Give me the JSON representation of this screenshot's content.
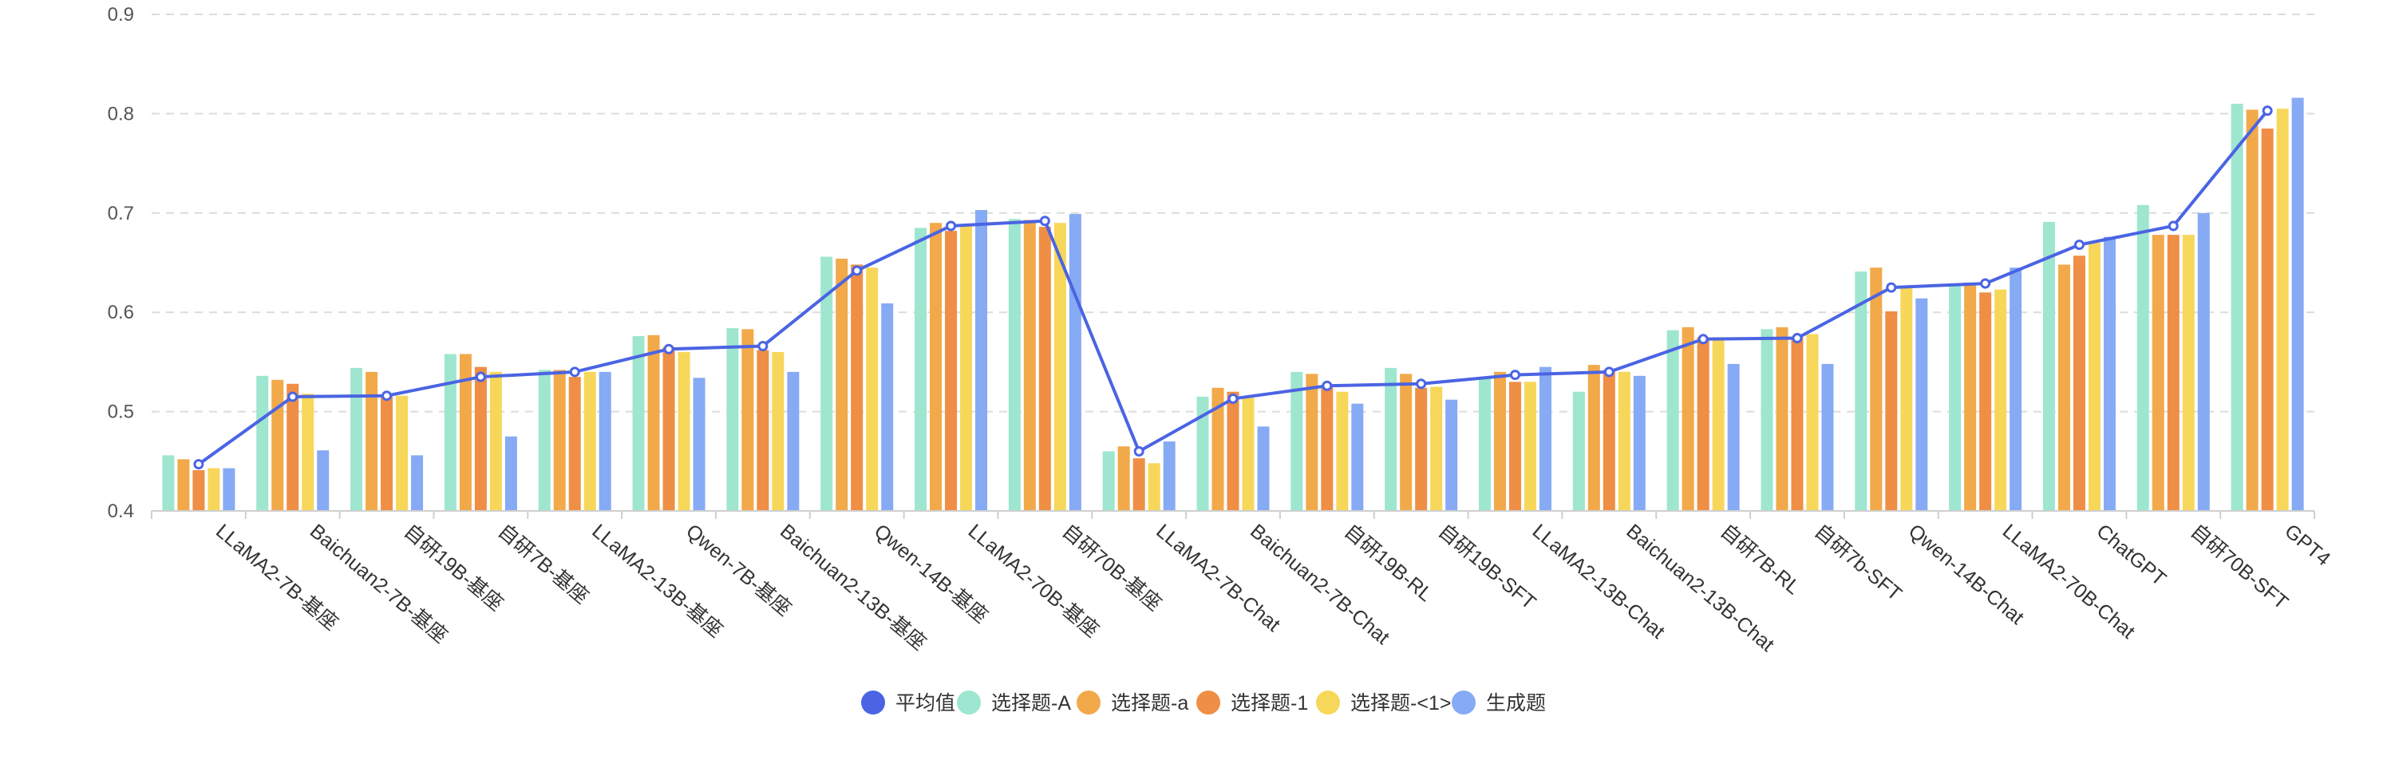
{
  "chart_data": {
    "type": "bar",
    "categories": [
      "LLaMA2-7B-基座",
      "Baichuan2-7B-基座",
      "自研19B-基座",
      "自研7B-基座",
      "LLaMA2-13B-基座",
      "Qwen-7B-基座",
      "Baichuan2-13B-基座",
      "Qwen-14B-基座",
      "LLaMA2-70B-基座",
      "自研70B-基座",
      "LLaMA2-7B-Chat",
      "Baichuan2-7B-Chat",
      "自研19B-RL",
      "自研19B-SFT",
      "LLaMA2-13B-Chat",
      "Baichuan2-13B-Chat",
      "自研7B-RL",
      "自研7b-SFT",
      "Qwen-14B-Chat",
      "LLaMA2-70B-Chat",
      "ChatGPT",
      "自研70B-SFT",
      "GPT4"
    ],
    "series": [
      {
        "name": "选择题-A",
        "color": "#9ee6cf",
        "values": [
          0.456,
          0.536,
          0.544,
          0.558,
          0.542,
          0.576,
          0.584,
          0.656,
          0.685,
          0.694,
          0.46,
          0.515,
          0.54,
          0.544,
          0.535,
          0.52,
          0.582,
          0.583,
          0.641,
          0.629,
          0.691,
          0.708,
          0.81
        ]
      },
      {
        "name": "选择题-a",
        "color": "#f2a94a",
        "values": [
          0.452,
          0.532,
          0.54,
          0.558,
          0.542,
          0.577,
          0.583,
          0.654,
          0.69,
          0.693,
          0.465,
          0.524,
          0.538,
          0.538,
          0.54,
          0.547,
          0.585,
          0.585,
          0.645,
          0.63,
          0.648,
          0.678,
          0.804
        ]
      },
      {
        "name": "选择题-1",
        "color": "#ef8e45",
        "values": [
          0.441,
          0.528,
          0.516,
          0.545,
          0.535,
          0.565,
          0.562,
          0.648,
          0.682,
          0.686,
          0.453,
          0.52,
          0.525,
          0.524,
          0.53,
          0.542,
          0.575,
          0.575,
          0.601,
          0.62,
          0.657,
          0.678,
          0.785
        ]
      },
      {
        "name": "选择题-<1>",
        "color": "#f7d75a",
        "values": [
          0.443,
          0.518,
          0.516,
          0.54,
          0.54,
          0.56,
          0.56,
          0.645,
          0.688,
          0.69,
          0.448,
          0.514,
          0.52,
          0.525,
          0.53,
          0.54,
          0.575,
          0.578,
          0.626,
          0.623,
          0.67,
          0.678,
          0.805
        ]
      },
      {
        "name": "生成题",
        "color": "#86aaf4",
        "values": [
          0.443,
          0.461,
          0.456,
          0.475,
          0.54,
          0.534,
          0.54,
          0.609,
          0.703,
          0.699,
          0.47,
          0.485,
          0.508,
          0.512,
          0.545,
          0.536,
          0.548,
          0.548,
          0.614,
          0.645,
          0.676,
          0.7,
          0.816
        ]
      }
    ],
    "line": {
      "name": "平均值",
      "color": "#4a64e3",
      "values": [
        0.447,
        0.515,
        0.516,
        0.535,
        0.54,
        0.563,
        0.566,
        0.642,
        0.687,
        0.692,
        0.46,
        0.513,
        0.526,
        0.528,
        0.537,
        0.54,
        0.573,
        0.574,
        0.625,
        0.629,
        0.668,
        0.687,
        0.803
      ]
    },
    "yticks": [
      "0.9",
      "0.8",
      "0.7",
      "0.6",
      "0.5",
      "0.4"
    ],
    "ylim": [
      0.4,
      0.9
    ],
    "grid": true,
    "legend_position": "bottom-center",
    "title": "",
    "xlabel": "",
    "ylabel": ""
  }
}
